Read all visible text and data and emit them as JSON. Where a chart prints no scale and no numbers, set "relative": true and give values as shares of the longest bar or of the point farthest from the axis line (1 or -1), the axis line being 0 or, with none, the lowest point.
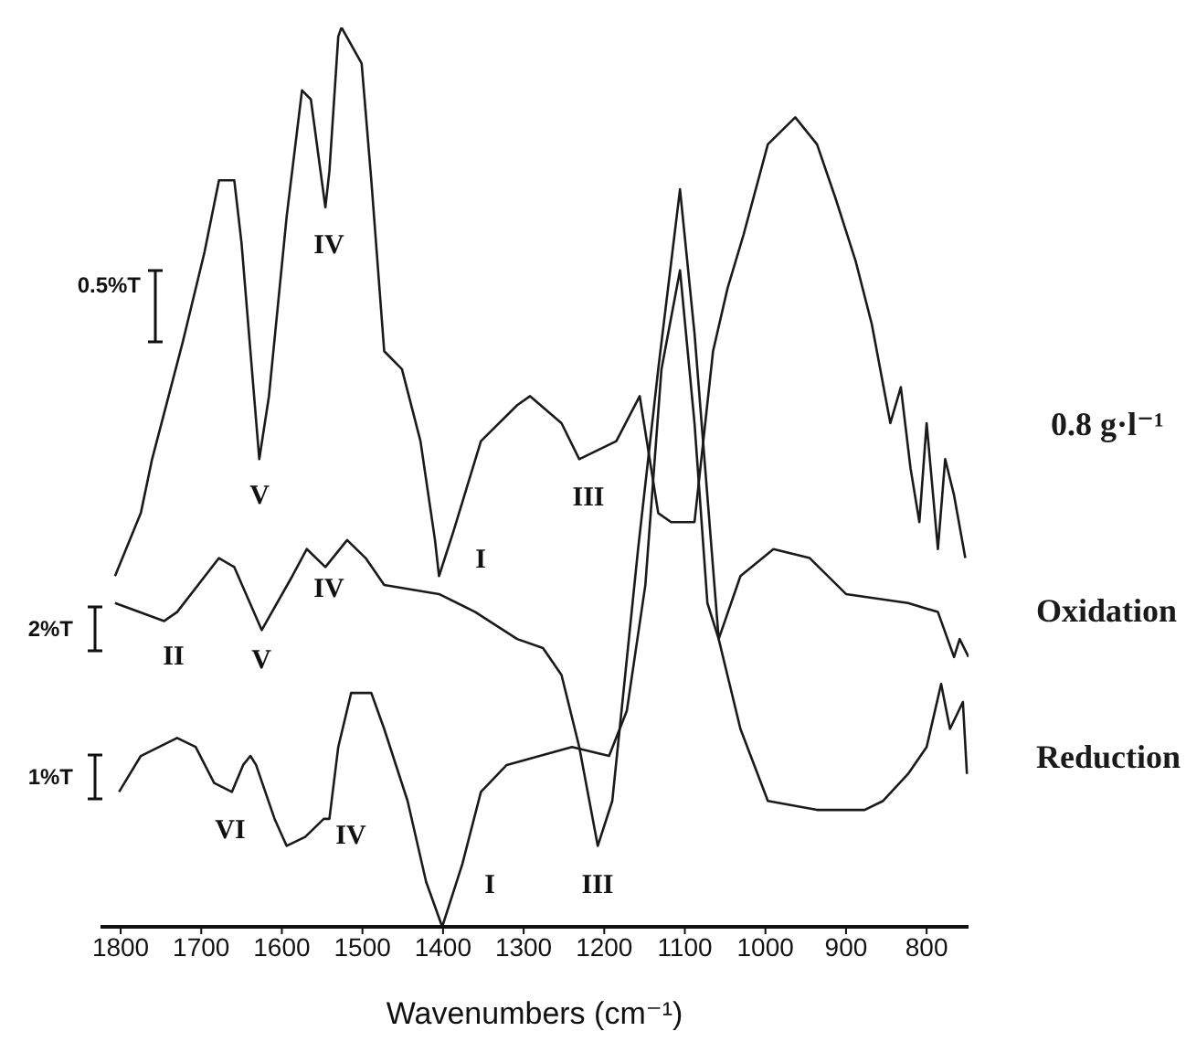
{
  "chart_data": {
    "type": "line",
    "relative": true,
    "xlabel": "Wavenumbers (cm⁻¹)",
    "xlim": [
      1825,
      748
    ],
    "xticks": [
      1800,
      1700,
      1600,
      1500,
      1400,
      1300,
      1200,
      1100,
      1000,
      900,
      800
    ],
    "grid": false,
    "series": [
      {
        "name": "0.8 g·l⁻¹",
        "color": "#1a1a1a",
        "x": [
          1807,
          1775,
          1761,
          1723,
          1696,
          1678,
          1666,
          1659,
          1650,
          1628,
          1616,
          1594,
          1575,
          1564,
          1546,
          1541,
          1530,
          1526,
          1501,
          1489,
          1473,
          1451,
          1428,
          1410,
          1405,
          1387,
          1353,
          1308,
          1292,
          1253,
          1231,
          1185,
          1156,
          1133,
          1117,
          1088,
          1065,
          1047,
          1027,
          997,
          963,
          936,
          913,
          888,
          868,
          845,
          832,
          820,
          809,
          800,
          786,
          777,
          766,
          752
        ],
        "values": [
          0.39,
          0.46,
          0.52,
          0.65,
          0.75,
          0.83,
          0.83,
          0.83,
          0.76,
          0.52,
          0.59,
          0.79,
          0.93,
          0.92,
          0.8,
          0.84,
          0.99,
          1.0,
          0.96,
          0.83,
          0.64,
          0.62,
          0.54,
          0.43,
          0.39,
          0.44,
          0.54,
          0.58,
          0.59,
          0.56,
          0.52,
          0.54,
          0.59,
          0.46,
          0.45,
          0.45,
          0.64,
          0.71,
          0.77,
          0.87,
          0.9,
          0.87,
          0.81,
          0.74,
          0.67,
          0.56,
          0.6,
          0.51,
          0.45,
          0.56,
          0.42,
          0.52,
          0.48,
          0.41
        ]
      },
      {
        "name": "Oxidation",
        "color": "#1a1a1a",
        "x": [
          1807,
          1746,
          1730,
          1678,
          1659,
          1625,
          1587,
          1569,
          1546,
          1519,
          1496,
          1473,
          1405,
          1360,
          1308,
          1276,
          1253,
          1231,
          1208,
          1190,
          1158,
          1133,
          1106,
          1088,
          1058,
          1031,
          990,
          945,
          900,
          823,
          786,
          766,
          759,
          748
        ],
        "values": [
          0.36,
          0.34,
          0.35,
          0.41,
          0.4,
          0.33,
          0.39,
          0.42,
          0.4,
          0.43,
          0.41,
          0.38,
          0.37,
          0.35,
          0.32,
          0.31,
          0.28,
          0.2,
          0.09,
          0.14,
          0.42,
          0.62,
          0.82,
          0.66,
          0.32,
          0.39,
          0.42,
          0.41,
          0.37,
          0.36,
          0.35,
          0.3,
          0.32,
          0.3
        ]
      },
      {
        "name": "Reduction",
        "color": "#1a1a1a",
        "x": [
          1802,
          1775,
          1730,
          1707,
          1684,
          1662,
          1648,
          1639,
          1632,
          1609,
          1594,
          1571,
          1548,
          1541,
          1530,
          1514,
          1489,
          1473,
          1444,
          1421,
          1401,
          1376,
          1353,
          1321,
          1240,
          1194,
          1172,
          1149,
          1129,
          1106,
          1088,
          1072,
          1058,
          1031,
          997,
          936,
          877,
          854,
          823,
          800,
          782,
          771,
          755,
          750
        ],
        "values": [
          0.15,
          0.19,
          0.21,
          0.2,
          0.16,
          0.15,
          0.18,
          0.19,
          0.18,
          0.12,
          0.09,
          0.1,
          0.12,
          0.12,
          0.2,
          0.26,
          0.26,
          0.22,
          0.14,
          0.05,
          0.0,
          0.07,
          0.15,
          0.18,
          0.2,
          0.19,
          0.24,
          0.38,
          0.62,
          0.73,
          0.56,
          0.36,
          0.32,
          0.22,
          0.14,
          0.13,
          0.13,
          0.14,
          0.17,
          0.2,
          0.27,
          0.22,
          0.25,
          0.17
        ]
      }
    ],
    "annotations": [
      "0.5%T",
      "2%T",
      "1%T",
      "IV",
      "V",
      "I",
      "III",
      "II",
      "V",
      "IV",
      "VI",
      "IV",
      "I",
      "III"
    ]
  }
}
